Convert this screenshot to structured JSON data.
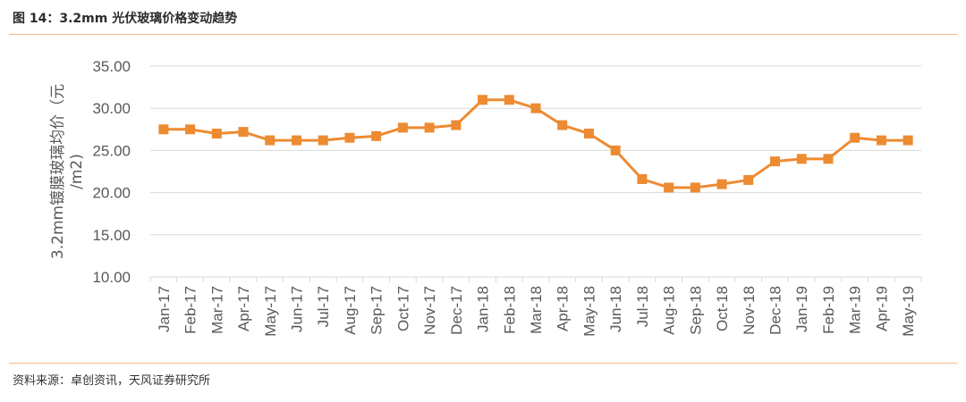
{
  "figure": {
    "title": "图 14：3.2mm 光伏玻璃价格变动趋势",
    "source": "资料来源：卓创资讯，天风证券研究所"
  },
  "colors": {
    "series": "#ed8b32",
    "gridline": "#d9d9d9",
    "rule": "#f2b98a",
    "text": "#595959"
  },
  "chart_data": {
    "type": "line",
    "title": "",
    "xlabel": "",
    "ylabel_line1": "3.2mm镀膜玻璃均价（元",
    "ylabel_line2": "/m2)",
    "ylim": [
      10,
      35
    ],
    "yticks": [
      "10.00",
      "15.00",
      "20.00",
      "25.00",
      "30.00",
      "35.00"
    ],
    "grid": true,
    "legend": "none",
    "marker": "square",
    "categories": [
      "Jan-17",
      "Feb-17",
      "Mar-17",
      "Apr-17",
      "May-17",
      "Jun-17",
      "Jul-17",
      "Aug-17",
      "Sep-17",
      "Oct-17",
      "Nov-17",
      "Dec-17",
      "Jan-18",
      "Feb-18",
      "Mar-18",
      "Apr-18",
      "May-18",
      "Jun-18",
      "Jul-18",
      "Aug-18",
      "Sep-18",
      "Oct-18",
      "Nov-18",
      "Dec-18",
      "Jan-19",
      "Feb-19",
      "Mar-19",
      "Apr-19",
      "May-19"
    ],
    "series": [
      {
        "values": [
          27.5,
          27.5,
          27.0,
          27.2,
          26.2,
          26.2,
          26.2,
          26.5,
          26.7,
          27.7,
          27.7,
          28.0,
          31.0,
          31.0,
          30.0,
          28.0,
          27.0,
          25.0,
          21.6,
          20.6,
          20.6,
          21.0,
          21.5,
          23.7,
          24.0,
          24.0,
          26.5,
          26.2,
          26.2
        ]
      }
    ]
  }
}
